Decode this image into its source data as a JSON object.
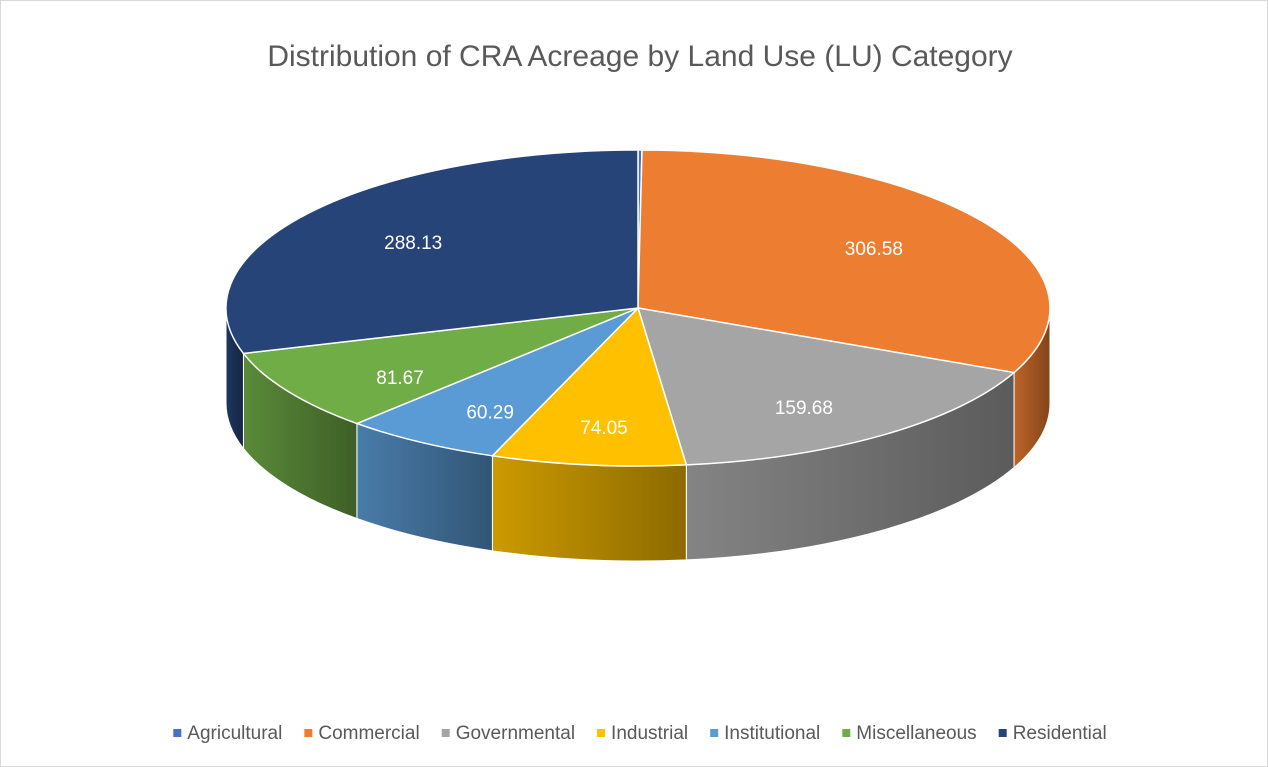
{
  "chart_data": {
    "type": "pie",
    "title": "Distribution of CRA Acreage by Land Use (LU) Category",
    "categories": [
      "Agricultural",
      "Commercial",
      "Governmental",
      "Industrial",
      "Institutional",
      "Miscellaneous",
      "Residential"
    ],
    "values": [
      1.5,
      306.58,
      159.68,
      74.05,
      60.29,
      81.67,
      288.13
    ],
    "colors": [
      "#4472c4",
      "#ed7d31",
      "#a5a5a5",
      "#ffc000",
      "#5b9bd5",
      "#70ad47",
      "#264478"
    ],
    "legend": "bottom"
  }
}
